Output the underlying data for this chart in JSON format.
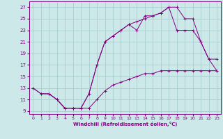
{
  "xlabel": "Windchill (Refroidissement éolien,°C)",
  "bg_color": "#cce8e8",
  "line_color": "#800080",
  "grid_color": "#a8cccc",
  "xlim": [
    -0.5,
    23.5
  ],
  "ylim": [
    8.5,
    28
  ],
  "yticks": [
    9,
    11,
    13,
    15,
    17,
    19,
    21,
    23,
    25,
    27
  ],
  "xticks": [
    0,
    1,
    2,
    3,
    4,
    5,
    6,
    7,
    8,
    9,
    10,
    11,
    12,
    13,
    14,
    15,
    16,
    17,
    18,
    19,
    20,
    21,
    22,
    23
  ],
  "curve1_x": [
    0,
    1,
    2,
    3,
    4,
    5,
    6,
    7,
    8,
    9,
    10,
    11,
    12,
    13,
    14,
    15,
    16,
    17,
    18,
    19,
    20,
    21,
    22,
    23
  ],
  "curve1_y": [
    13,
    12,
    12,
    11,
    9.5,
    9.5,
    9.5,
    12,
    17,
    21,
    22,
    23,
    24,
    23,
    25.5,
    25.5,
    26,
    27,
    27,
    25,
    25,
    21,
    18,
    16
  ],
  "curve2_x": [
    0,
    1,
    2,
    3,
    4,
    5,
    6,
    7,
    8,
    9,
    10,
    11,
    12,
    13,
    14,
    15,
    16,
    17,
    18,
    19,
    20,
    21,
    22,
    23
  ],
  "curve2_y": [
    13,
    12,
    12,
    11,
    9.5,
    9.5,
    9.5,
    9.5,
    11,
    12.5,
    13.5,
    14,
    14.5,
    15,
    15.5,
    15.5,
    16,
    16,
    16,
    16,
    16,
    16,
    16,
    16
  ],
  "curve3_x": [
    2,
    3,
    4,
    5,
    6,
    7,
    8,
    9,
    10,
    11,
    12,
    13,
    14,
    15,
    16,
    17,
    18,
    19,
    20,
    21,
    22,
    23
  ],
  "curve3_y": [
    12,
    11,
    9.5,
    9.5,
    9.5,
    12,
    17,
    21,
    22,
    23,
    24,
    24.5,
    25,
    25.5,
    26,
    27,
    23,
    23,
    23,
    21,
    18,
    18
  ]
}
